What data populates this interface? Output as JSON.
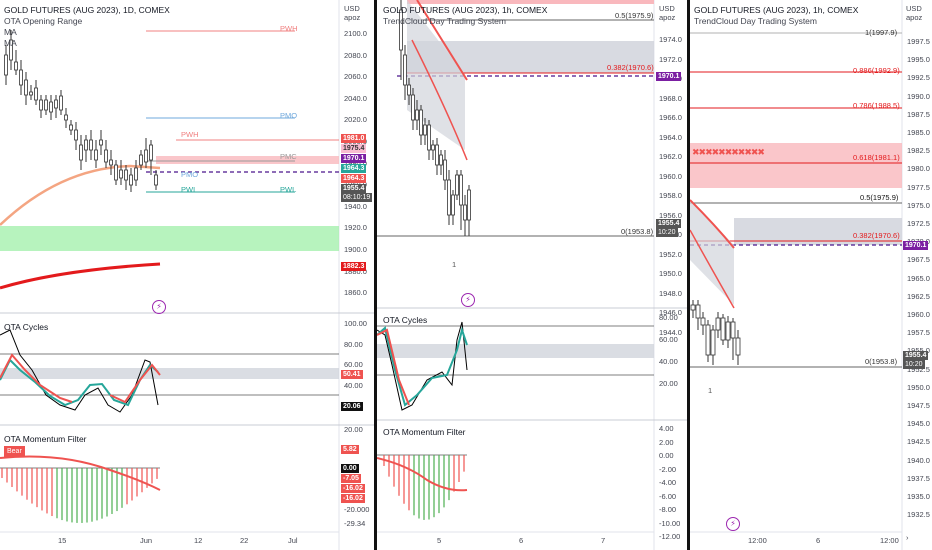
{
  "pane1": {
    "title": "GOLD FUTURES (AUG 2023), 1D, COMEX",
    "sub1": "OTA Opening Range",
    "sub2": "MA",
    "sub3": "MA",
    "currency": "USD",
    "unit": "apoz",
    "yticks": [
      "2100.0",
      "2080.0",
      "2060.0",
      "2040.0",
      "2020.0",
      "2000.0",
      "1980.0",
      "1960.0",
      "1940.0",
      "1920.0",
      "1900.0",
      "1880.0",
      "1860.0"
    ],
    "levels": {
      "pwh_right": "PWH",
      "pmo": "PMO",
      "pmc": "PMC",
      "pwh": "PWH",
      "pmo2": "PMO",
      "pwl": "PWL",
      "pwl_right": "PWL"
    },
    "tags": {
      "t1981": "1981.0",
      "t1975": "1975.4",
      "t1970": "1970.1",
      "t1964": "1964.3",
      "t1964b": "1964.3",
      "t1955": "1955.4",
      "t1955time": "08:10:19",
      "t1882": "1882.3"
    },
    "cycles": {
      "title": "OTA Cycles",
      "ticks": [
        "100.00",
        "80.00",
        "60.00",
        "40.00",
        "20.00"
      ],
      "tag1": "50.41",
      "tag2": "20.06"
    },
    "momentum": {
      "title": "OTA Momentum Filter",
      "badge": "Bear",
      "ticks": [
        "20.00",
        "5.82",
        "0.00",
        "-7.05",
        "-16.02",
        "-16.02",
        "-20.000",
        "-29.34"
      ]
    },
    "xticks": [
      "15",
      "Jun",
      "12",
      "22",
      "Jul"
    ]
  },
  "pane2": {
    "title": "GOLD FUTURES (AUG 2023), 1h, COMEX",
    "sub1": "TrendCloud Day Trading System",
    "currency": "USD",
    "unit": "apoz",
    "yticks": [
      "1974.0",
      "1972.0",
      "1970.0",
      "1968.0",
      "1966.0",
      "1964.0",
      "1962.0",
      "1960.0",
      "1958.0",
      "1956.0",
      "1954.0",
      "1952.0",
      "1950.0",
      "1948.0",
      "1946.0",
      "1944.0"
    ],
    "fib": {
      "f05": "0.5(1975.9)",
      "f0382": "0.382(1970.6)",
      "f0": "0(1953.8)"
    },
    "tags": {
      "t1970": "1970.1",
      "t1955": "1955.4",
      "t1955time": "10:20"
    },
    "marker": "1",
    "cycles": {
      "title": "OTA Cycles",
      "ticks": [
        "80.00",
        "60.00",
        "40.00",
        "20.00"
      ]
    },
    "momentum": {
      "title": "OTA Momentum Filter",
      "ticks": [
        "4.00",
        "2.00",
        "0.00",
        "-2.00",
        "-4.00",
        "-6.00",
        "-8.00",
        "-10.00",
        "-12.00"
      ]
    },
    "xticks": [
      "5",
      "6",
      "7"
    ]
  },
  "pane3": {
    "title": "GOLD FUTURES (AUG 2023), 1h, COMEX",
    "sub1": "TrendCloud Day Trading System",
    "currency": "USD",
    "unit": "apoz",
    "yticks": [
      "1997.5",
      "1995.0",
      "1992.5",
      "1990.0",
      "1987.5",
      "1985.0",
      "1982.5",
      "1980.0",
      "1977.5",
      "1975.0",
      "1972.5",
      "1970.0",
      "1967.5",
      "1965.0",
      "1962.5",
      "1960.0",
      "1957.5",
      "1955.0",
      "1952.5",
      "1950.0",
      "1947.5",
      "1945.0",
      "1942.5",
      "1940.0",
      "1937.5",
      "1935.0",
      "1932.5"
    ],
    "fib": {
      "f1": "1(1997.9)",
      "f0886": "0.886(1992.9)",
      "f0786": "0.786(1988.5)",
      "f0618": "0.618(1981.1)",
      "f05": "0.5(1975.9)",
      "f0382": "0.382(1970.6)",
      "f0": "0(1953.8)"
    },
    "tags": {
      "t1970": "1970.1",
      "t1955": "1955.4",
      "t1955time": "10:20"
    },
    "marker": "1",
    "xticks": [
      "12:00",
      "6",
      "12:00"
    ]
  },
  "colors": {
    "bull": "#26a69a",
    "bear": "#ef5350",
    "magenta": "#9c27b0",
    "green_zone": "#a5f0ae",
    "red_zone": "#f9b8bd",
    "grey_zone": "#d1d4dc"
  }
}
